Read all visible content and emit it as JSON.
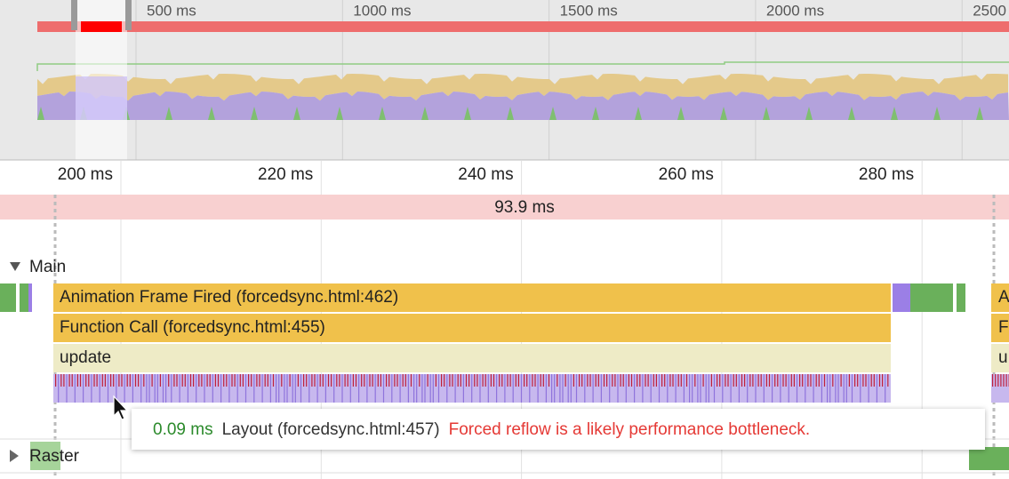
{
  "overview": {
    "ticks": [
      "500 ms",
      "1000 ms",
      "1500 ms",
      "2000 ms",
      "2500"
    ]
  },
  "timeline": {
    "ticks": [
      "200 ms",
      "220 ms",
      "240 ms",
      "260 ms",
      "280 ms"
    ],
    "frame": "93.9 ms"
  },
  "tracks": {
    "main": {
      "label": "Main",
      "events": [
        "Animation Frame Fired (forcedsync.html:462)",
        "Function Call (forcedsync.html:455)",
        "update"
      ],
      "cut_events": [
        "A",
        "F",
        "u"
      ]
    },
    "raster": {
      "label": "Raster"
    }
  },
  "tooltip": {
    "duration": "0.09 ms",
    "name": "Layout (forcedsync.html:457)",
    "warning": "Forced reflow is a likely performance bottleneck."
  }
}
